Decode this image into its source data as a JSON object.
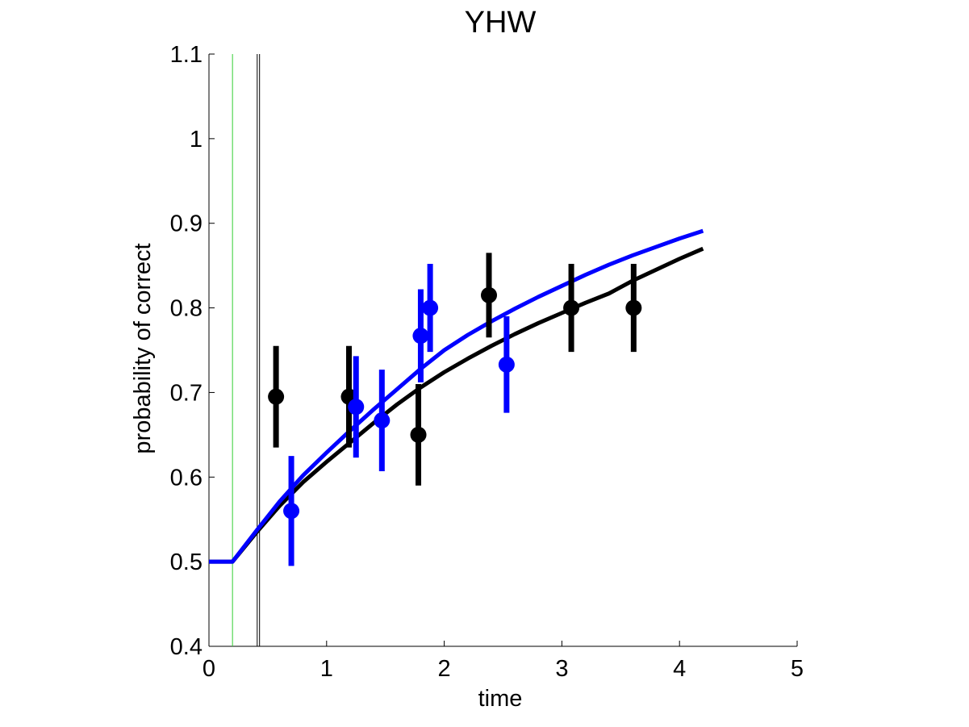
{
  "chart_data": {
    "type": "scatter",
    "title": "YHW",
    "xlabel": "time",
    "ylabel": "probability of correct",
    "xlim": [
      0,
      5
    ],
    "ylim": [
      0.4,
      1.1
    ],
    "x_ticks": [
      0,
      1,
      2,
      3,
      4,
      5
    ],
    "x_tick_labels": [
      "0",
      "1",
      "2",
      "3",
      "4",
      "5"
    ],
    "y_ticks": [
      0.4,
      0.5,
      0.6,
      0.7,
      0.8,
      0.9,
      1.0,
      1.1
    ],
    "y_tick_labels": [
      "0.4",
      "0.5",
      "0.6",
      "0.7",
      "0.8",
      "0.9",
      "1",
      "1.1"
    ],
    "grid": false,
    "vertical_lines": [
      {
        "x": 0.2,
        "color": "#33cc33"
      },
      {
        "x": 0.41,
        "color": "#000000"
      },
      {
        "x": 0.43,
        "color": "#000000"
      }
    ],
    "series": [
      {
        "color": "#000000",
        "points": [
          {
            "x": 0.57,
            "y": 0.695,
            "lo": 0.635,
            "hi": 0.755
          },
          {
            "x": 1.19,
            "y": 0.695,
            "lo": 0.635,
            "hi": 0.755
          },
          {
            "x": 1.78,
            "y": 0.65,
            "lo": 0.59,
            "hi": 0.71
          },
          {
            "x": 2.38,
            "y": 0.815,
            "lo": 0.765,
            "hi": 0.865
          },
          {
            "x": 3.08,
            "y": 0.8,
            "lo": 0.748,
            "hi": 0.852
          },
          {
            "x": 3.61,
            "y": 0.8,
            "lo": 0.748,
            "hi": 0.852
          }
        ],
        "curve": {
          "x": [
            0.0,
            0.2,
            0.4,
            0.6,
            0.8,
            1.0,
            1.2,
            1.4,
            1.6,
            1.8,
            2.0,
            2.2,
            2.4,
            2.6,
            2.8,
            3.0,
            3.2,
            3.4,
            3.6,
            3.8,
            4.0,
            4.2
          ],
          "y": [
            0.5,
            0.5,
            0.534,
            0.566,
            0.594,
            0.618,
            0.641,
            0.664,
            0.686,
            0.706,
            0.724,
            0.74,
            0.755,
            0.769,
            0.782,
            0.794,
            0.806,
            0.817,
            0.832,
            0.845,
            0.858,
            0.87
          ]
        }
      },
      {
        "color": "#0000ff",
        "points": [
          {
            "x": 0.7,
            "y": 0.56,
            "lo": 0.495,
            "hi": 0.625
          },
          {
            "x": 1.25,
            "y": 0.683,
            "lo": 0.623,
            "hi": 0.743
          },
          {
            "x": 1.47,
            "y": 0.667,
            "lo": 0.607,
            "hi": 0.727
          },
          {
            "x": 1.8,
            "y": 0.767,
            "lo": 0.712,
            "hi": 0.822
          },
          {
            "x": 1.88,
            "y": 0.8,
            "lo": 0.748,
            "hi": 0.852
          },
          {
            "x": 2.53,
            "y": 0.733,
            "lo": 0.676,
            "hi": 0.79
          }
        ],
        "curve": {
          "x": [
            0.0,
            0.2,
            0.4,
            0.6,
            0.8,
            1.0,
            1.2,
            1.4,
            1.6,
            1.8,
            2.0,
            2.2,
            2.4,
            2.6,
            2.8,
            3.0,
            3.2,
            3.4,
            3.6,
            3.8,
            4.0,
            4.2
          ],
          "y": [
            0.5,
            0.5,
            0.536,
            0.571,
            0.602,
            0.629,
            0.655,
            0.68,
            0.704,
            0.728,
            0.75,
            0.768,
            0.784,
            0.799,
            0.813,
            0.826,
            0.839,
            0.851,
            0.862,
            0.872,
            0.882,
            0.891
          ]
        }
      }
    ]
  }
}
